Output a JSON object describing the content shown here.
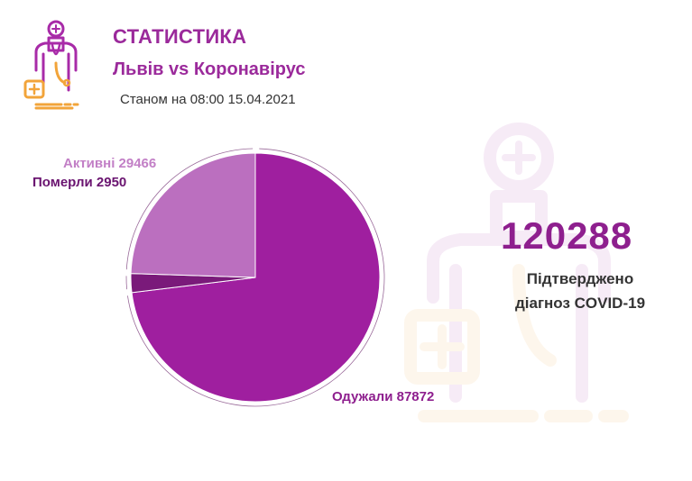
{
  "header": {
    "title": "СТАТИСТИКА",
    "subtitle": "Львів vs Коронавірус",
    "as_of": "Станом на 08:00 15.04.2021"
  },
  "summary": {
    "total": "120288",
    "caption_line1": "Підтверджено",
    "caption_line2": "діагноз COVID-19"
  },
  "icons": {
    "logo": "doctor-icon",
    "watermark": "doctor-watermark-icon"
  },
  "colors": {
    "accent": "#9b2a9b",
    "recovered": "#9f1f9f",
    "died": "#7a1a7a",
    "active": "#bb6fbf"
  },
  "chart_data": {
    "type": "pie",
    "slices": [
      {
        "label": "Одужали 87872",
        "name": "Одужали",
        "value": 87872,
        "color": "#9f1f9f"
      },
      {
        "label": "Померли 2950",
        "name": "Померли",
        "value": 2950,
        "color": "#7a1a7a"
      },
      {
        "label": "Активні 29466",
        "name": "Активні",
        "value": 29466,
        "color": "#bb6fbf"
      }
    ]
  }
}
